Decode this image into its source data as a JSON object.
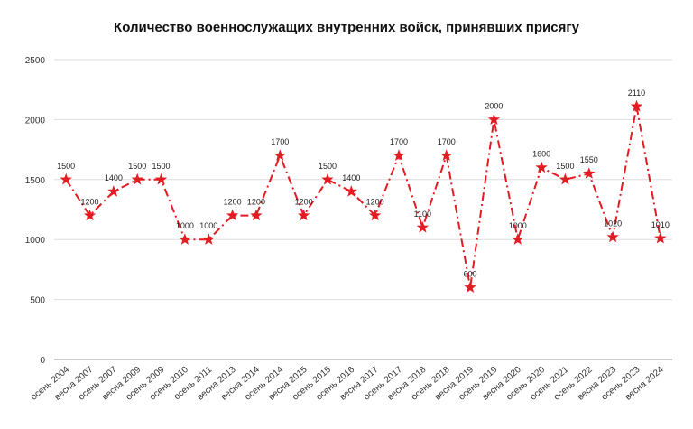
{
  "chart_data": {
    "type": "line",
    "title": "Количество военнослужащих внутренних войск, принявших присягу",
    "xlabel": "",
    "ylabel": "",
    "ylim": [
      0,
      2500
    ],
    "yticks": [
      0,
      500,
      1000,
      1500,
      2000,
      2500
    ],
    "grid": true,
    "legend": "none",
    "colors": {
      "series": "#e31b23",
      "grid": "#dddddd",
      "text": "#222222"
    },
    "categories": [
      "осень 2004",
      "весна 2007",
      "осень 2007",
      "весна 2009",
      "осень 2009",
      "осень 2010",
      "осень 2011",
      "весна 2013",
      "весна 2014",
      "осень 2014",
      "весна 2015",
      "осень 2015",
      "осень 2016",
      "весна 2017",
      "осень 2017",
      "весна 2018",
      "осень 2018",
      "весна 2019",
      "осень 2019",
      "весна 2020",
      "осень 2020",
      "осень 2021",
      "осень 2022",
      "весна 2023",
      "осень 2023",
      "весна 2024"
    ],
    "series": [
      {
        "values": [
          1500,
          1200,
          1400,
          1500,
          1500,
          1000,
          1000,
          1200,
          1200,
          1700,
          1200,
          1500,
          1400,
          1200,
          1700,
          1100,
          1700,
          600,
          2000,
          1000,
          1600,
          1500,
          1550,
          1020,
          2110,
          1010
        ],
        "labels": [
          "1500",
          "1200",
          "1400",
          "1500",
          "1500",
          "1000",
          "1000",
          "1200",
          "1200",
          "1700",
          "1200",
          "1500",
          "1400",
          "1200",
          "1700",
          "1100",
          "1700",
          "600",
          "2000",
          "1000",
          "1600",
          "1500",
          "1550",
          "1020",
          "2110",
          "1010"
        ]
      }
    ]
  }
}
